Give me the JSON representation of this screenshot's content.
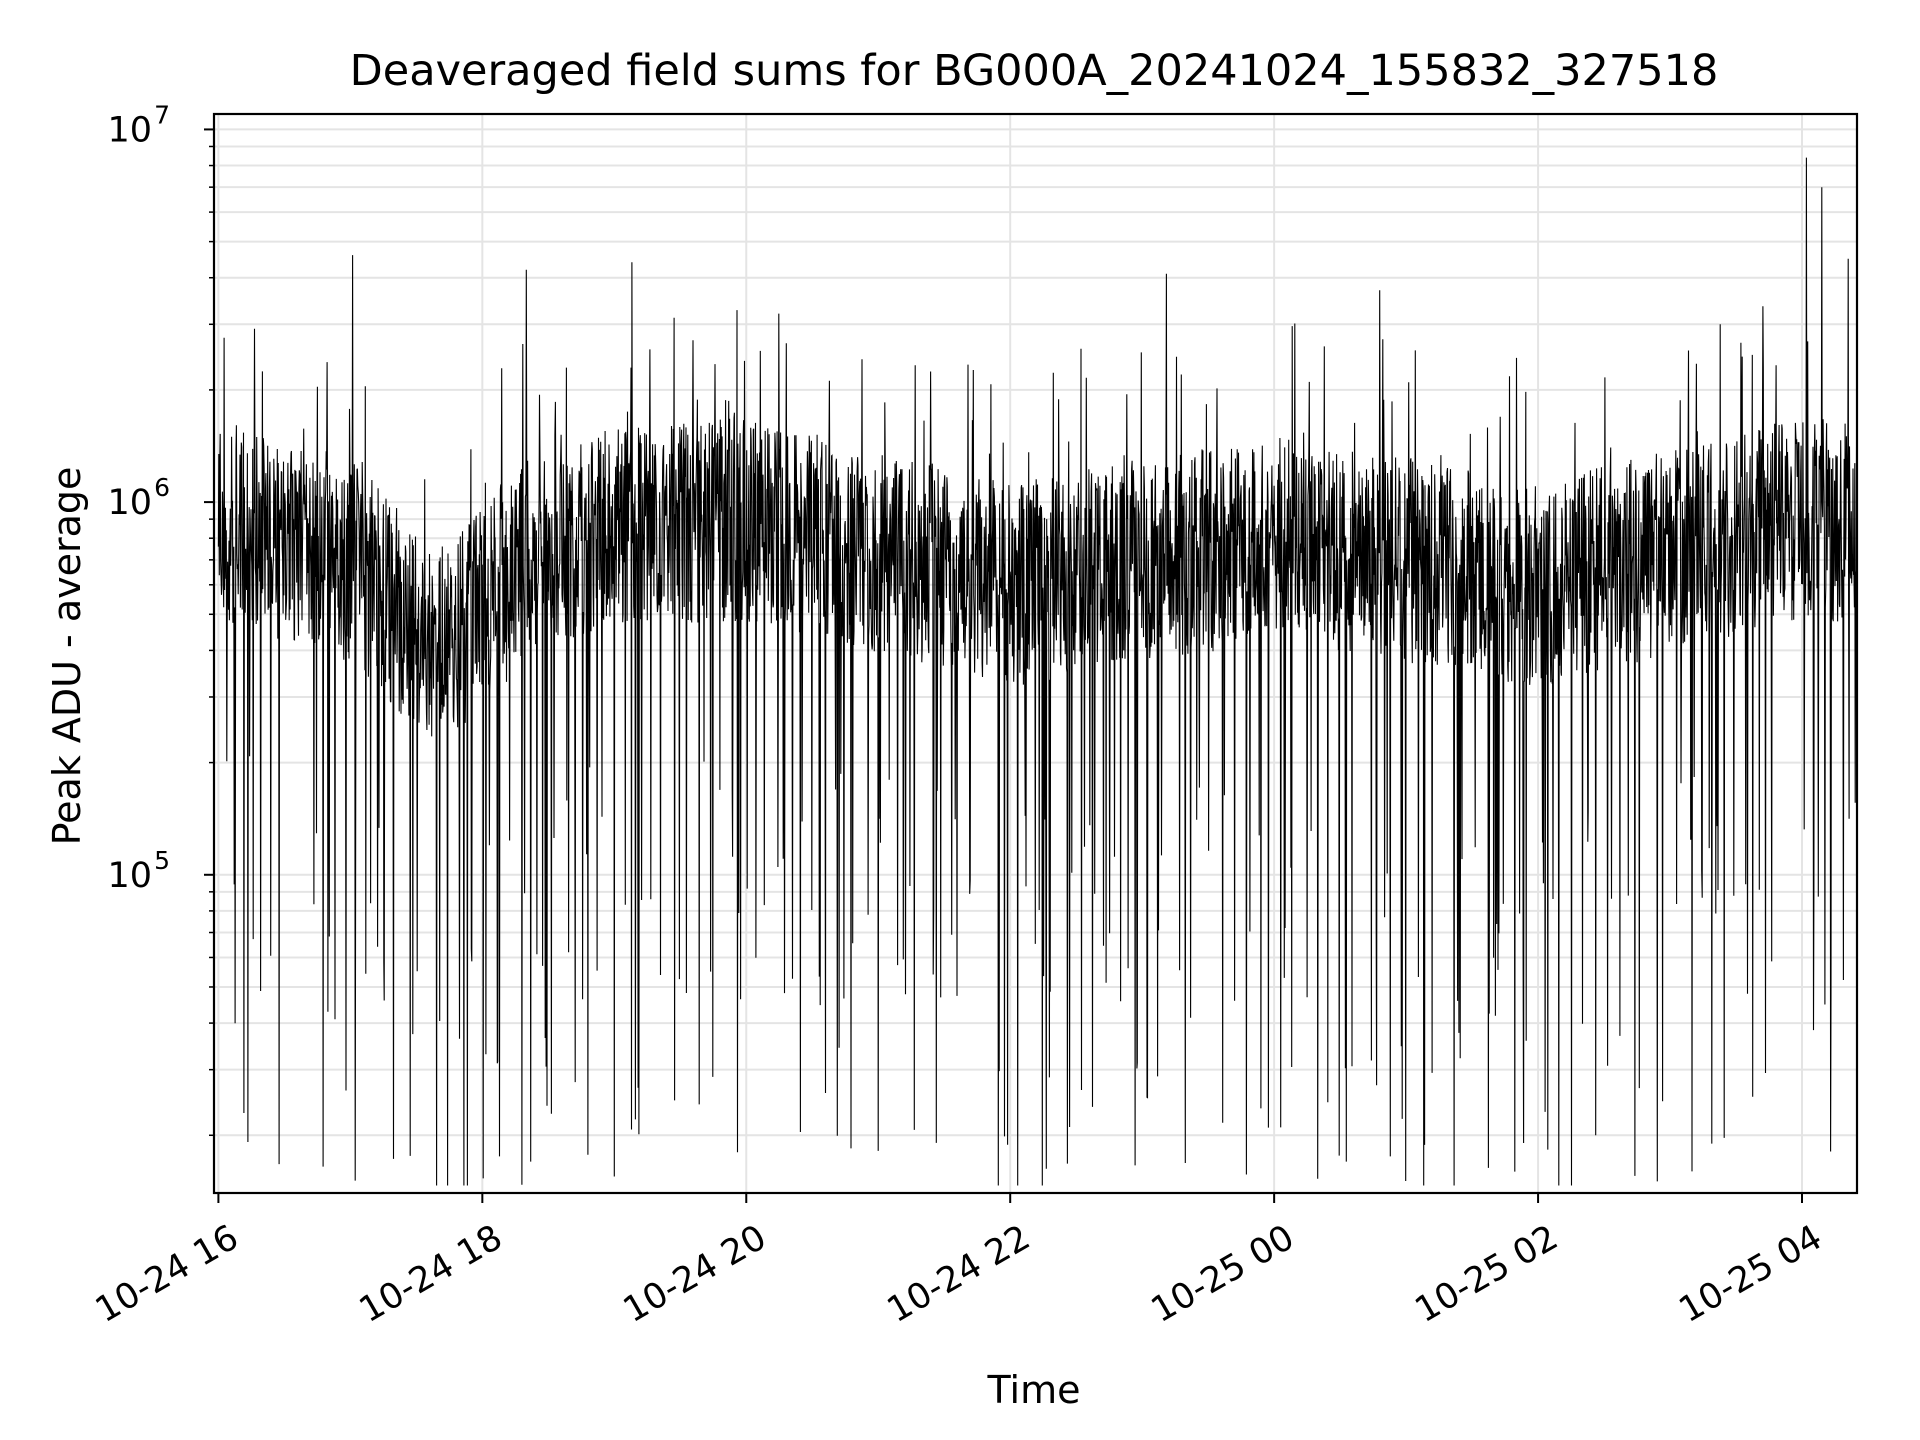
{
  "chart_data": {
    "type": "line",
    "title": "Deaveraged field sums for BG000A_20241024_155832_327518",
    "xlabel": "Time",
    "ylabel": "Peak ADU - average",
    "yscale": "log",
    "ylim": [
      14000,
      11000000
    ],
    "xlim": [
      "10-24 15:58",
      "10-25 04:25"
    ],
    "x_ticks": [
      "10-24 16",
      "10-24 18",
      "10-24 20",
      "10-24 22",
      "10-25 00",
      "10-25 02",
      "10-25 04"
    ],
    "y_ticks": [
      {
        "value": 100000,
        "base": "10",
        "exp": "5"
      },
      {
        "value": 1000000,
        "base": "10",
        "exp": "6"
      },
      {
        "value": 10000000,
        "base": "10",
        "exp": "7"
      }
    ],
    "grid": true,
    "line_color": "#000000",
    "series": [
      {
        "name": "",
        "sampling": "approx. one point per 12 seconds, 10-24 16:00 to 10-25 04:25",
        "notable_peaks": [
          {
            "x": "10-24 17:01",
            "y": 4600000
          },
          {
            "x": "10-24 18:20",
            "y": 4200000
          },
          {
            "x": "10-24 19:08",
            "y": 4400000
          },
          {
            "x": "10-24 23:11",
            "y": 4100000
          },
          {
            "x": "10-25 00:48",
            "y": 3700000
          },
          {
            "x": "10-25 04:02",
            "y": 8400000
          },
          {
            "x": "10-25 04:09",
            "y": 7000000
          },
          {
            "x": "10-25 04:21",
            "y": 4500000
          }
        ],
        "notable_troughs": [
          {
            "x": "10-24 18:22",
            "y": 17000
          },
          {
            "x": "10-24 19:00",
            "y": 15500
          },
          {
            "x": "10-25 00:03",
            "y": 21000
          },
          {
            "x": "10-25 03:10",
            "y": 16000
          },
          {
            "x": "10-25 03:19",
            "y": 19000
          }
        ],
        "baseline_by_hour": [
          {
            "x": "10-24 16:00",
            "y": 900000
          },
          {
            "x": "10-24 17:00",
            "y": 700000
          },
          {
            "x": "10-24 17:40",
            "y": 400000
          },
          {
            "x": "10-24 18:30",
            "y": 800000
          },
          {
            "x": "10-24 20:00",
            "y": 900000
          },
          {
            "x": "10-24 22:00",
            "y": 600000
          },
          {
            "x": "10-25 00:00",
            "y": 800000
          },
          {
            "x": "10-25 02:00",
            "y": 600000
          },
          {
            "x": "10-25 04:00",
            "y": 900000
          }
        ]
      }
    ]
  }
}
